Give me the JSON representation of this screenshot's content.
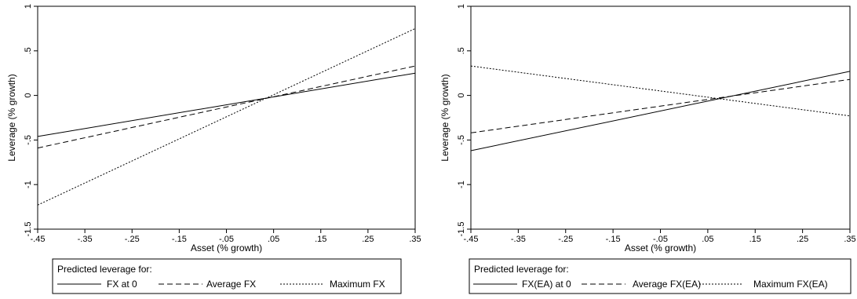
{
  "chart_data": [
    {
      "type": "line",
      "xlabel": "Asset (% growth)",
      "ylabel": "Leverage (% growth)",
      "xlim": [
        -0.45,
        0.35
      ],
      "ylim": [
        -1.5,
        1
      ],
      "x_ticks": [
        -0.45,
        -0.35,
        -0.25,
        -0.15,
        -0.05,
        0.05,
        0.15,
        0.25,
        0.35
      ],
      "x_tick_labels": [
        "-.45",
        "-.35",
        "-.25",
        "-.15",
        "-.05",
        ".05",
        ".15",
        ".25",
        ".35"
      ],
      "y_ticks": [
        -1.5,
        -1,
        -0.5,
        0,
        0.5,
        1
      ],
      "y_tick_labels": [
        "-1.5",
        "-1",
        "-.5",
        "0",
        ".5",
        "1"
      ],
      "grid": false,
      "legend": {
        "title": "Predicted leverage for:",
        "placement": "bottom"
      },
      "series": [
        {
          "name": "FX at 0",
          "style": "solid",
          "x": [
            -0.45,
            0.35
          ],
          "y": [
            -0.46,
            0.25
          ]
        },
        {
          "name": "Average FX",
          "style": "dashed",
          "x": [
            -0.45,
            0.35
          ],
          "y": [
            -0.59,
            0.33
          ]
        },
        {
          "name": "Maximum FX",
          "style": "dotted",
          "x": [
            -0.45,
            0.35
          ],
          "y": [
            -1.23,
            0.75
          ]
        }
      ]
    },
    {
      "type": "line",
      "xlabel": "Asset (% growth)",
      "ylabel": "Leverage (% growth)",
      "xlim": [
        -0.45,
        0.35
      ],
      "ylim": [
        -1.5,
        1
      ],
      "x_ticks": [
        -0.45,
        -0.35,
        -0.25,
        -0.15,
        -0.05,
        0.05,
        0.15,
        0.25,
        0.35
      ],
      "x_tick_labels": [
        "-.45",
        "-.35",
        "-.25",
        "-.15",
        "-.05",
        ".05",
        ".15",
        ".25",
        ".35"
      ],
      "y_ticks": [
        -1.5,
        -1,
        -0.5,
        0,
        0.5,
        1
      ],
      "y_tick_labels": [
        "-1.5",
        "-1",
        "-.5",
        "0",
        ".5",
        "1"
      ],
      "grid": false,
      "legend": {
        "title": "Predicted leverage for:",
        "placement": "bottom"
      },
      "series": [
        {
          "name": "FX(EA) at 0",
          "style": "solid",
          "x": [
            -0.45,
            0.35
          ],
          "y": [
            -0.62,
            0.27
          ]
        },
        {
          "name": "Average FX(EA)",
          "style": "dashed",
          "x": [
            -0.45,
            0.35
          ],
          "y": [
            -0.42,
            0.18
          ]
        },
        {
          "name": "Maximum FX(EA)",
          "style": "dotted",
          "x": [
            -0.45,
            0.35
          ],
          "y": [
            0.33,
            -0.23
          ]
        }
      ]
    }
  ]
}
